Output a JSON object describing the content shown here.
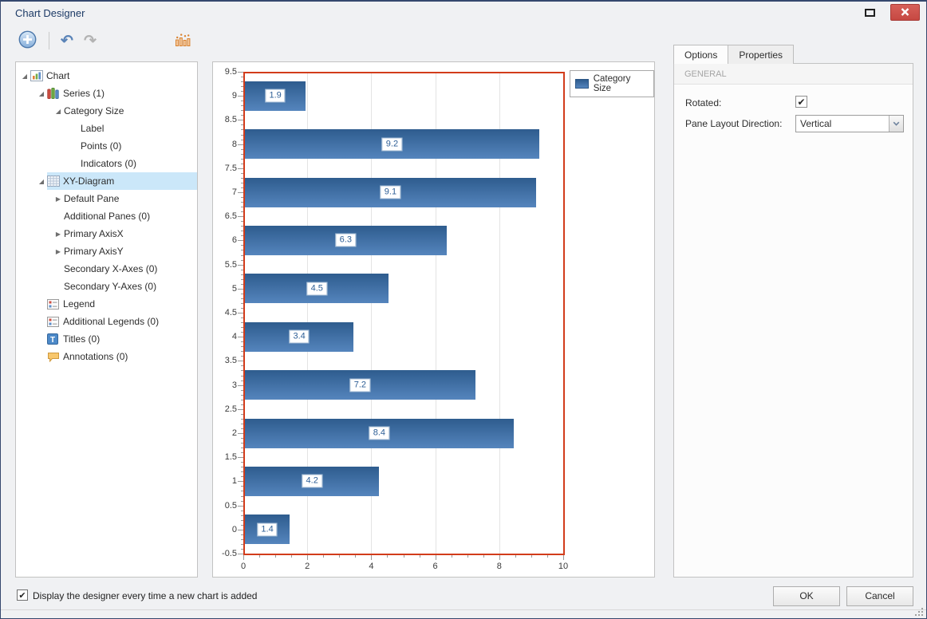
{
  "window": {
    "title": "Chart Designer"
  },
  "icons": {
    "checkmark": "✔",
    "expander_expanded": "◢",
    "expander_collapsed": "▶",
    "undo": "↶",
    "redo": "↷"
  },
  "tree": {
    "items": [
      {
        "label": "Chart",
        "level": 0,
        "expander": "expanded",
        "icon": "chart",
        "selected": false
      },
      {
        "label": "Series (1)",
        "level": 1,
        "expander": "expanded",
        "icon": "series",
        "selected": false
      },
      {
        "label": "Category Size",
        "level": 2,
        "expander": "expanded",
        "icon": null,
        "selected": false
      },
      {
        "label": "Label",
        "level": 3,
        "expander": "none",
        "icon": null,
        "selected": false
      },
      {
        "label": "Points (0)",
        "level": 3,
        "expander": "none",
        "icon": null,
        "selected": false
      },
      {
        "label": "Indicators (0)",
        "level": 3,
        "expander": "none",
        "icon": null,
        "selected": false
      },
      {
        "label": "XY-Diagram",
        "level": 1,
        "expander": "expanded",
        "icon": "xy-diagram",
        "selected": true
      },
      {
        "label": "Default Pane",
        "level": 2,
        "expander": "collapsed",
        "icon": null,
        "selected": false
      },
      {
        "label": "Additional Panes (0)",
        "level": 2,
        "expander": "none",
        "icon": null,
        "selected": false
      },
      {
        "label": "Primary AxisX",
        "level": 2,
        "expander": "collapsed",
        "icon": null,
        "selected": false
      },
      {
        "label": "Primary AxisY",
        "level": 2,
        "expander": "collapsed",
        "icon": null,
        "selected": false
      },
      {
        "label": "Secondary X-Axes (0)",
        "level": 2,
        "expander": "none",
        "icon": null,
        "selected": false
      },
      {
        "label": "Secondary Y-Axes (0)",
        "level": 2,
        "expander": "none",
        "icon": null,
        "selected": false
      },
      {
        "label": "Legend",
        "level": 1,
        "expander": "none",
        "icon": "legend",
        "selected": false
      },
      {
        "label": "Additional Legends (0)",
        "level": 1,
        "expander": "none",
        "icon": "legend",
        "selected": false
      },
      {
        "label": "Titles (0)",
        "level": 1,
        "expander": "none",
        "icon": "titles",
        "selected": false
      },
      {
        "label": "Annotations (0)",
        "level": 1,
        "expander": "none",
        "icon": "annotations",
        "selected": false
      }
    ]
  },
  "chart_data": {
    "type": "bar",
    "rotated": true,
    "categories": [
      0,
      1,
      2,
      3,
      4,
      5,
      6,
      7,
      8,
      9
    ],
    "series": [
      {
        "name": "Category Size",
        "values": [
          1.4,
          4.2,
          8.4,
          7.2,
          3.4,
          4.5,
          6.3,
          9.1,
          9.2,
          1.9
        ]
      }
    ],
    "value_axis": {
      "min": 0,
      "max": 10,
      "labeled_ticks": [
        0,
        2,
        4,
        6,
        8,
        10
      ],
      "minor_tick_step": 0.5,
      "gridlines": [
        2,
        4,
        6,
        8
      ]
    },
    "category_axis": {
      "min": -0.5,
      "max": 9.5,
      "label_step": 0.5,
      "minor_tick_step": 0.1
    },
    "legend": {
      "position": "top-right",
      "entries": [
        "Category Size"
      ]
    },
    "colors": {
      "bar_top": "#2e5c8e",
      "bar_bottom": "#5585bd",
      "pane_border": "#d23c1b",
      "label_text": "#2d5e96",
      "label_border": "#a3bbd4"
    }
  },
  "options_panel": {
    "tabs": [
      {
        "label": "Options",
        "active": true
      },
      {
        "label": "Properties",
        "active": false
      }
    ],
    "section": "GENERAL",
    "rotated_label": "Rotated:",
    "rotated_checked": true,
    "pane_layout_label": "Pane Layout Direction:",
    "pane_layout_value": "Vertical"
  },
  "footer": {
    "display_checkbox_label": "Display the designer every time a new chart is added",
    "display_checkbox_checked": true,
    "ok_label": "OK",
    "cancel_label": "Cancel"
  }
}
